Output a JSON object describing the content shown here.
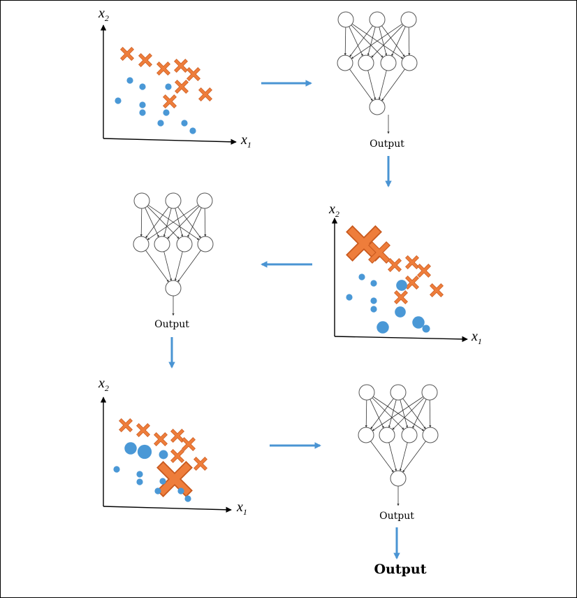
{
  "colors": {
    "dot": "#4a98d6",
    "cross": "#ee7d3b",
    "arrow": "#4a94d3",
    "line": "#333333"
  },
  "axis": {
    "x_label": "x",
    "x_sub": "1",
    "y_label": "x",
    "y_sub": "2"
  },
  "network": {
    "output_label": "Output"
  },
  "final_output": "Output",
  "stages": [
    {
      "name": "initial-dataset"
    },
    {
      "name": "weighted-dataset-1"
    },
    {
      "name": "weighted-dataset-2"
    }
  ]
}
